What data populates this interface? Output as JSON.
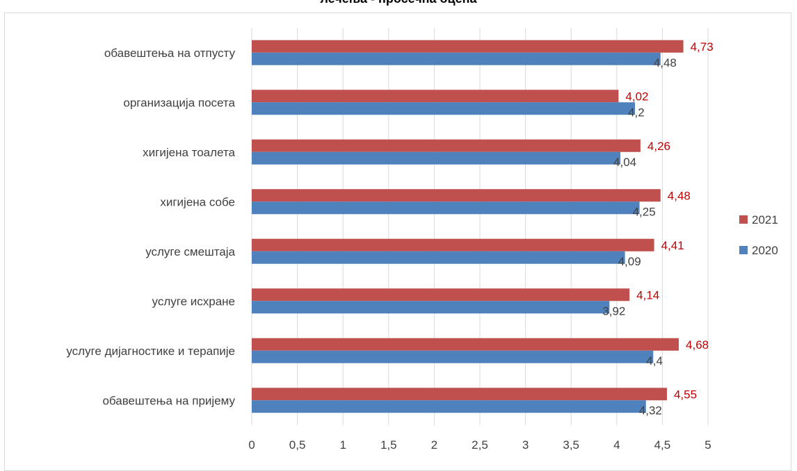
{
  "chart_data": {
    "type": "bar",
    "orientation": "horizontal",
    "title": "лечења - просечна оцена",
    "categories": [
      "обавештења на отпусту",
      "организација посета",
      "хигијена тоалета",
      "хигијена собе",
      "услуге смештаја",
      "услуге исхране",
      "услуге дијагностике и терапије",
      "обавештења на пријему"
    ],
    "series": [
      {
        "name": "2021",
        "color": "#c0504d",
        "label_color": "#c00000",
        "values": [
          4.73,
          4.02,
          4.26,
          4.48,
          4.41,
          4.14,
          4.68,
          4.55
        ],
        "labels": [
          "4,73",
          "4,02",
          "4,26",
          "4,48",
          "4,41",
          "4,14",
          "4,68",
          "4,55"
        ]
      },
      {
        "name": "2020",
        "color": "#4f81bd",
        "label_color": "#404040",
        "values": [
          4.48,
          4.2,
          4.04,
          4.25,
          4.09,
          3.92,
          4.4,
          4.32
        ],
        "labels": [
          "4,48",
          "4,2",
          "4,04",
          "4,25",
          "4,09",
          "3,92",
          "4,4",
          "4,32"
        ]
      }
    ],
    "xlim": [
      0,
      5
    ],
    "xticks": [
      "0",
      "0,5",
      "1",
      "1,5",
      "2",
      "2,5",
      "3",
      "3,5",
      "4",
      "4,5",
      "5"
    ],
    "xlabel": "",
    "ylabel": "",
    "grid": "vertical",
    "legend": "right"
  }
}
